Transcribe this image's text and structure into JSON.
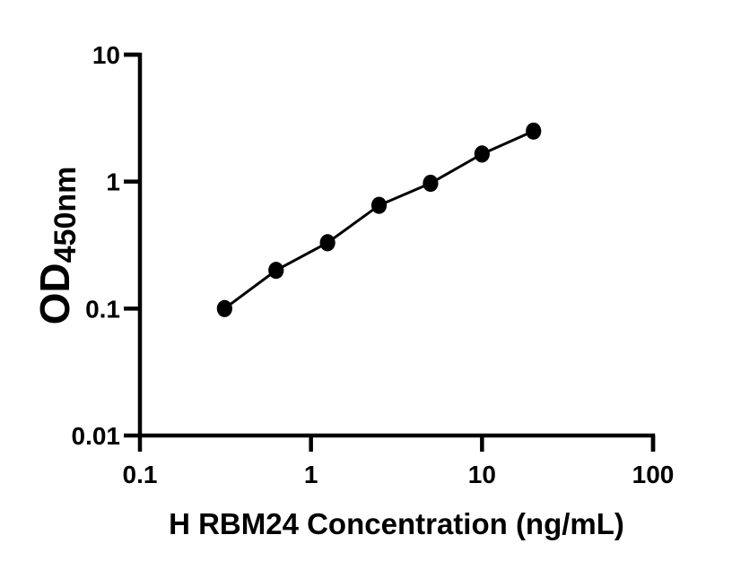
{
  "figure": {
    "background_color": "#ffffff",
    "accent_color": "#000000"
  },
  "chart_data": {
    "type": "scatter",
    "subtype": "line-and-markers",
    "title": "",
    "xlabel": "H RBM24 Concentration (ng/mL)",
    "ylabel_main": "OD",
    "ylabel_sub": "450nm",
    "x_scale": "log10",
    "y_scale": "log10",
    "xlim": [
      0.1,
      100
    ],
    "ylim": [
      0.01,
      10
    ],
    "x_ticks": [
      {
        "value": 0.1,
        "label": "0.1"
      },
      {
        "value": 1,
        "label": "1"
      },
      {
        "value": 10,
        "label": "10"
      },
      {
        "value": 100,
        "label": "100"
      }
    ],
    "y_ticks": [
      {
        "value": 0.01,
        "label": "0.01"
      },
      {
        "value": 0.1,
        "label": "0.1"
      },
      {
        "value": 1,
        "label": "1"
      },
      {
        "value": 10,
        "label": "10"
      }
    ],
    "grid": false,
    "legend": "none",
    "marker": "filled-circle",
    "line": "solid",
    "points": [
      {
        "x": 0.3125,
        "y": 0.1
      },
      {
        "x": 0.625,
        "y": 0.2
      },
      {
        "x": 1.25,
        "y": 0.33
      },
      {
        "x": 2.5,
        "y": 0.65
      },
      {
        "x": 5,
        "y": 0.97
      },
      {
        "x": 10,
        "y": 1.65
      },
      {
        "x": 20,
        "y": 2.5
      }
    ]
  }
}
